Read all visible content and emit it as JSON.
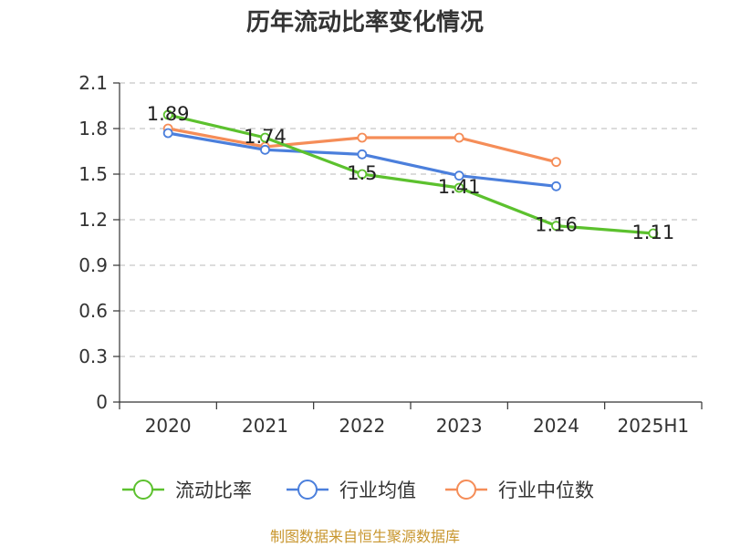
{
  "chart_data": {
    "type": "line",
    "title": "历年流动比率变化情况",
    "categories": [
      "2020",
      "2021",
      "2022",
      "2023",
      "2024",
      "2025H1"
    ],
    "ylim": [
      0,
      2.1
    ],
    "yticks": [
      "0",
      "0.3",
      "0.6",
      "0.9",
      "1.2",
      "1.5",
      "1.8",
      "2.1"
    ],
    "grid": true,
    "legend_position": "bottom",
    "series": [
      {
        "name": "流动比率",
        "color": "#5cc12e",
        "values": [
          1.89,
          1.74,
          1.5,
          1.41,
          1.16,
          1.11
        ],
        "labels": [
          "1.89",
          "1.74",
          "1.5",
          "1.41",
          "1.16",
          "1.11"
        ]
      },
      {
        "name": "行业均值",
        "color": "#4b7fdc",
        "values": [
          1.77,
          1.66,
          1.63,
          1.49,
          1.42,
          null
        ]
      },
      {
        "name": "行业中位数",
        "color": "#f58d58",
        "values": [
          1.8,
          1.68,
          1.74,
          1.74,
          1.58,
          null
        ]
      }
    ],
    "source": "制图数据来自恒生聚源数据库"
  }
}
